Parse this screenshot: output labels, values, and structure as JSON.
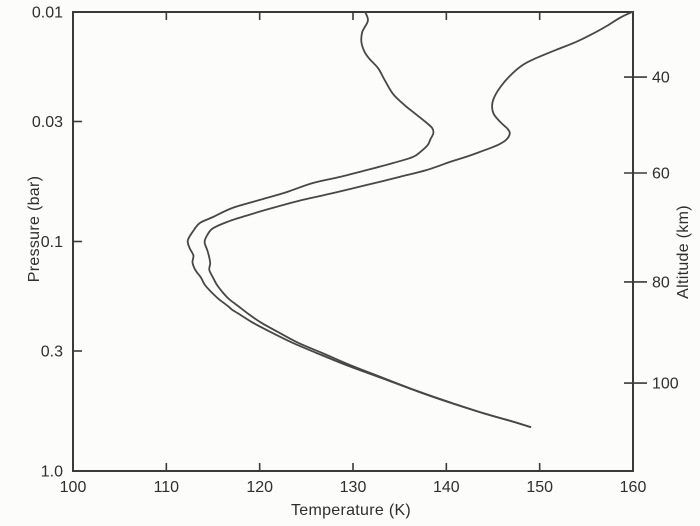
{
  "figure": {
    "colors": {
      "axis": "#3a3a3a",
      "curve": "#474747",
      "text": "#2e2e2e",
      "background": "#fcfcfa"
    }
  },
  "chart_data": {
    "type": "line",
    "title": "",
    "xlabel": "Temperature (K)",
    "ylabel": "Pressure (bar)",
    "y2label": "Altitude (km)",
    "point_format": [
      "temperature_K",
      "pressure_bar"
    ],
    "x_axis": {
      "min": 100,
      "max": 160,
      "ticks": [
        100,
        110,
        120,
        130,
        140,
        150,
        160
      ],
      "tick_labels": [
        "100",
        "110",
        "120",
        "130",
        "140",
        "150",
        "160"
      ]
    },
    "y_axis": {
      "scale": "log",
      "min": 0.01,
      "max": 1.0,
      "direction": "increasing-downward",
      "ticks": [
        0.01,
        0.03,
        0.1,
        0.3,
        1.0
      ],
      "tick_labels": [
        "0.01",
        "0.03",
        "0.1",
        "0.3",
        "1.0"
      ]
    },
    "y2_axis": {
      "ticks": [
        {
          "label": "40",
          "at_pressure": 0.0192
        },
        {
          "label": "60",
          "at_pressure": 0.0503
        },
        {
          "label": "80",
          "at_pressure": 0.15
        },
        {
          "label": "100",
          "at_pressure": 0.414
        }
      ]
    },
    "grid": false,
    "legend": null,
    "series": [
      {
        "name": "temperature-profile-cold",
        "points": [
          [
            131.3,
            0.01
          ],
          [
            131.6,
            0.0109
          ],
          [
            131.0,
            0.0122
          ],
          [
            130.9,
            0.0135
          ],
          [
            131.2,
            0.0148
          ],
          [
            131.7,
            0.0159
          ],
          [
            132.7,
            0.0176
          ],
          [
            133.4,
            0.0198
          ],
          [
            134.3,
            0.0228
          ],
          [
            135.5,
            0.0254
          ],
          [
            136.6,
            0.0276
          ],
          [
            137.8,
            0.0302
          ],
          [
            138.5,
            0.0321
          ],
          [
            138.6,
            0.0338
          ],
          [
            138.3,
            0.0358
          ],
          [
            138.0,
            0.038
          ],
          [
            137.2,
            0.0408
          ],
          [
            136.4,
            0.0429
          ],
          [
            134.3,
            0.0455
          ],
          [
            131.5,
            0.0488
          ],
          [
            128.6,
            0.0523
          ],
          [
            125.7,
            0.0556
          ],
          [
            122.9,
            0.0609
          ],
          [
            120.0,
            0.0659
          ],
          [
            117.1,
            0.0714
          ],
          [
            115.0,
            0.0782
          ],
          [
            113.6,
            0.0831
          ],
          [
            112.9,
            0.0897
          ],
          [
            112.3,
            0.0989
          ],
          [
            112.5,
            0.107
          ],
          [
            112.9,
            0.115
          ],
          [
            112.8,
            0.1233
          ],
          [
            113.1,
            0.133
          ],
          [
            113.7,
            0.1435
          ],
          [
            114.1,
            0.154
          ],
          [
            114.8,
            0.1658
          ],
          [
            115.6,
            0.178
          ],
          [
            116.6,
            0.1912
          ],
          [
            117.1,
            0.199
          ],
          [
            117.8,
            0.207
          ],
          [
            119.2,
            0.225
          ],
          [
            121.1,
            0.2472
          ],
          [
            123.5,
            0.276
          ],
          [
            126.1,
            0.306
          ],
          [
            129.4,
            0.347
          ],
          [
            133.1,
            0.394
          ],
          [
            136.9,
            0.45
          ],
          [
            140.6,
            0.507
          ],
          [
            144.4,
            0.567
          ],
          [
            147.0,
            0.607
          ],
          [
            149.0,
            0.643
          ]
        ]
      },
      {
        "name": "temperature-profile-warm",
        "points": [
          [
            159.9,
            0.01
          ],
          [
            158.6,
            0.0106
          ],
          [
            157.2,
            0.0115
          ],
          [
            155.6,
            0.0125
          ],
          [
            153.9,
            0.0135
          ],
          [
            151.8,
            0.0146
          ],
          [
            149.6,
            0.0159
          ],
          [
            148.2,
            0.017
          ],
          [
            146.8,
            0.019
          ],
          [
            145.8,
            0.0212
          ],
          [
            145.1,
            0.0237
          ],
          [
            144.9,
            0.0257
          ],
          [
            145.1,
            0.0279
          ],
          [
            145.8,
            0.0302
          ],
          [
            146.5,
            0.0321
          ],
          [
            146.8,
            0.0338
          ],
          [
            146.4,
            0.0361
          ],
          [
            145.5,
            0.038
          ],
          [
            144.1,
            0.04
          ],
          [
            142.1,
            0.0428
          ],
          [
            140.4,
            0.045
          ],
          [
            137.9,
            0.0488
          ],
          [
            135.0,
            0.0523
          ],
          [
            131.5,
            0.0567
          ],
          [
            127.9,
            0.0615
          ],
          [
            124.6,
            0.0659
          ],
          [
            121.4,
            0.0714
          ],
          [
            118.6,
            0.0771
          ],
          [
            116.5,
            0.0822
          ],
          [
            115.0,
            0.0876
          ],
          [
            114.4,
            0.0935
          ],
          [
            114.1,
            0.1005
          ],
          [
            114.4,
            0.1095
          ],
          [
            114.6,
            0.1175
          ],
          [
            114.7,
            0.1245
          ],
          [
            114.6,
            0.133
          ],
          [
            115.0,
            0.1435
          ],
          [
            115.4,
            0.154
          ],
          [
            116.0,
            0.1658
          ],
          [
            116.7,
            0.178
          ],
          [
            117.7,
            0.1912
          ],
          [
            118.8,
            0.207
          ],
          [
            120.1,
            0.225
          ],
          [
            121.9,
            0.2472
          ],
          [
            124.1,
            0.276
          ],
          [
            126.7,
            0.306
          ],
          [
            129.8,
            0.347
          ],
          [
            133.3,
            0.394
          ],
          [
            137.0,
            0.45
          ],
          [
            140.7,
            0.507
          ],
          [
            144.4,
            0.567
          ],
          [
            147.0,
            0.607
          ],
          [
            149.0,
            0.643
          ]
        ]
      }
    ]
  }
}
